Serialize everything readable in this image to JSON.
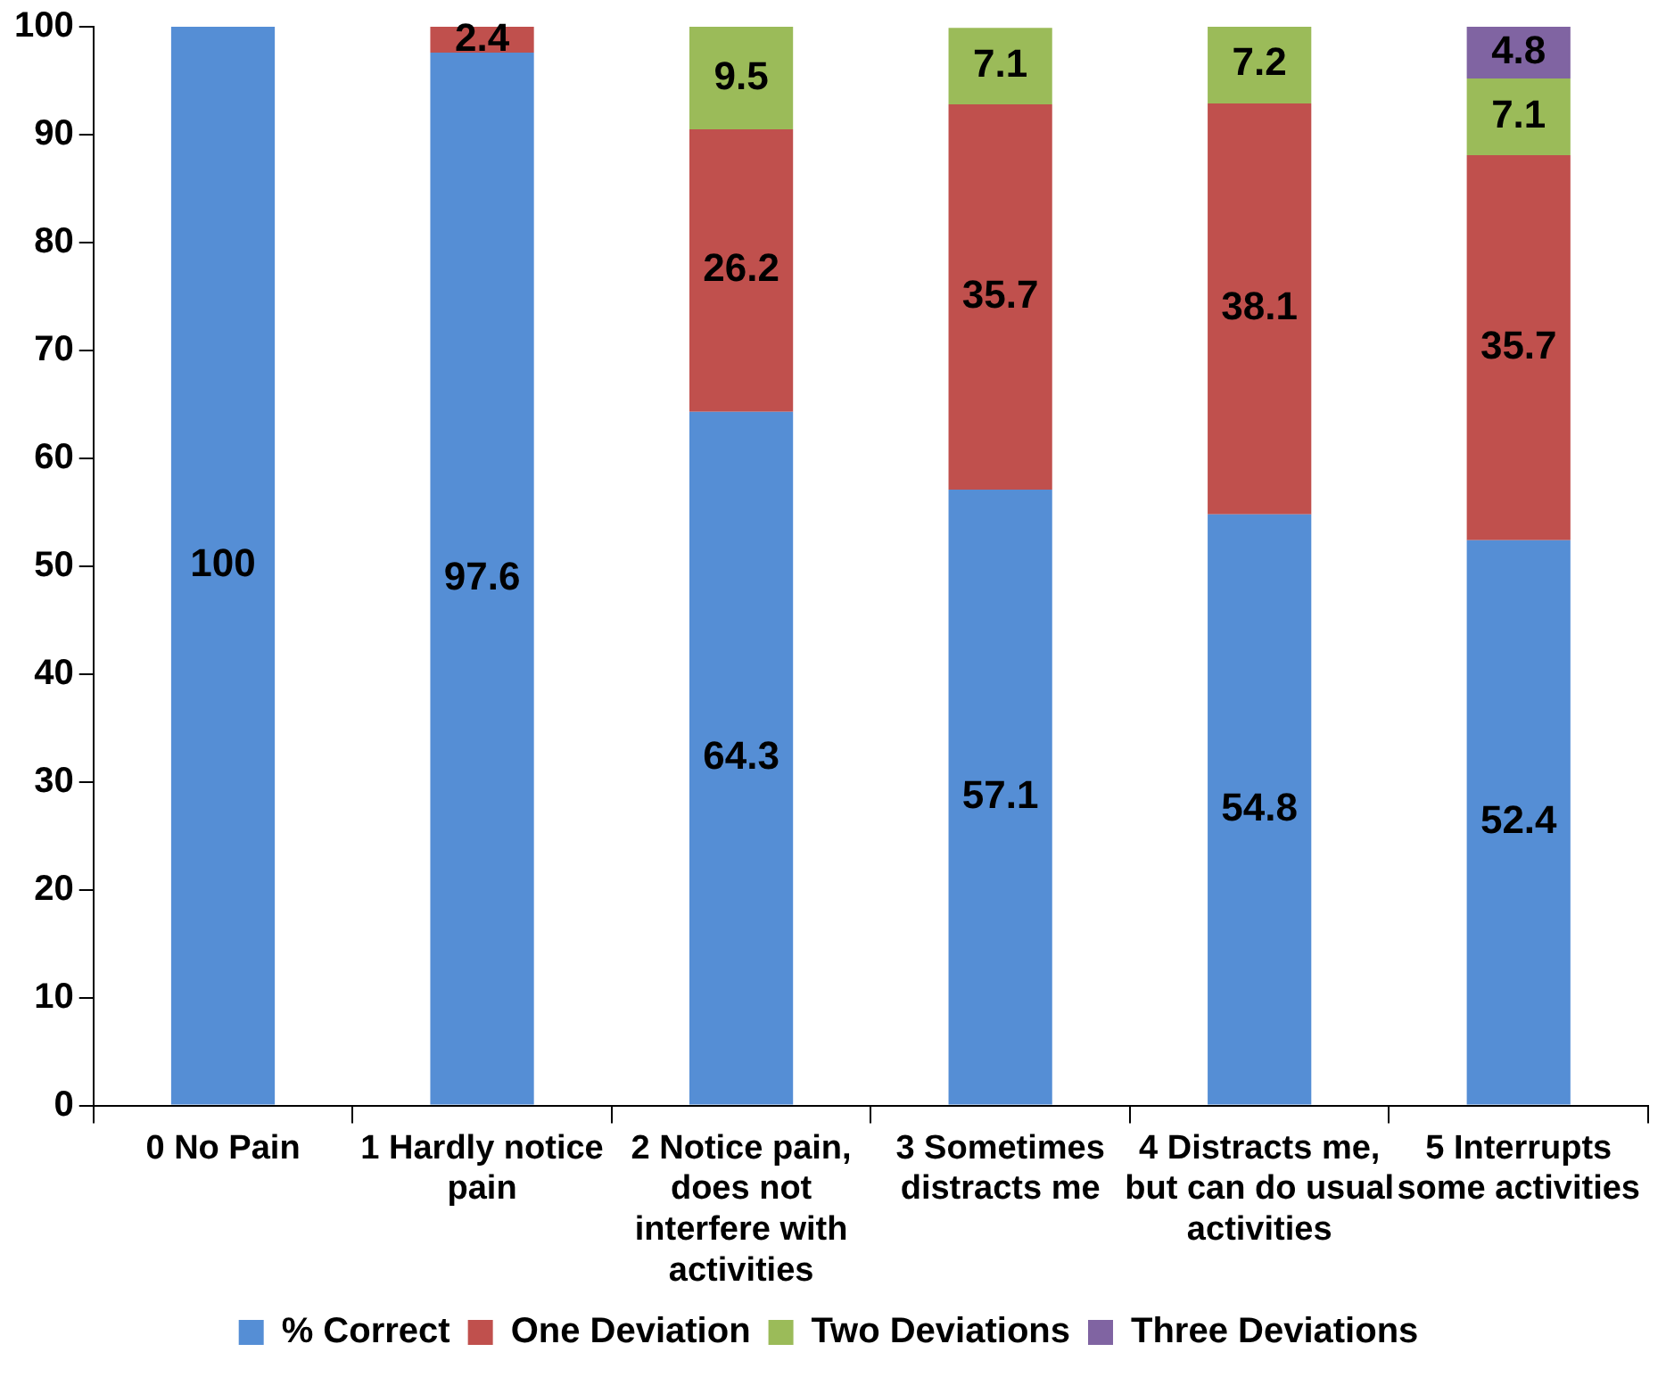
{
  "chart_data": {
    "type": "bar",
    "stacked": true,
    "categories": [
      "0 No Pain",
      "1 Hardly notice pain",
      "2 Notice pain, does not interfere with activities",
      "3 Sometimes distracts me",
      "4 Distracts me, but can do usual activities",
      "5 Interrupts some activities"
    ],
    "series": [
      {
        "name": "% Correct",
        "color": "#558ed5",
        "values": [
          100,
          97.6,
          64.3,
          57.1,
          54.8,
          52.4
        ]
      },
      {
        "name": "One Deviation",
        "color": "#c0504d",
        "values": [
          null,
          2.4,
          26.2,
          35.7,
          38.1,
          35.7
        ]
      },
      {
        "name": "Two Deviations",
        "color": "#9bbb59",
        "values": [
          null,
          null,
          9.5,
          7.1,
          7.2,
          7.1
        ]
      },
      {
        "name": "Three Deviations",
        "color": "#8064a2",
        "values": [
          null,
          null,
          null,
          null,
          null,
          4.8
        ]
      }
    ],
    "ylim": [
      0,
      100
    ],
    "yticks": [
      0,
      10,
      20,
      30,
      40,
      50,
      60,
      70,
      80,
      90,
      100
    ],
    "grid": false,
    "legend": "bottom",
    "data_labels": true
  }
}
